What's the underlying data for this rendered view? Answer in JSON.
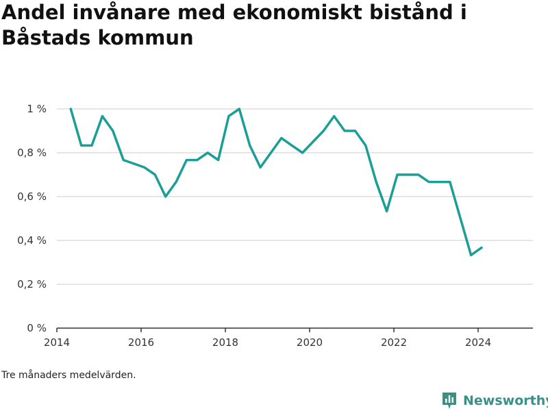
{
  "title": "Andel invånare med ekonomiskt bistånd i Båstads kommun",
  "footnote": "Tre månaders medelvärden.",
  "brand": {
    "name": "Newsworthy",
    "logo_icon": "bar-chart-chat-icon",
    "color": "#3b8f86"
  },
  "colors": {
    "line": "#1a9e96",
    "grid": "#dddddd",
    "axis": "#333333"
  },
  "chart_data": {
    "type": "line",
    "title": "Andel invånare med ekonomiskt bistånd i Båstads kommun",
    "xlabel": "",
    "ylabel": "",
    "xlim": [
      2014.0,
      2025.3
    ],
    "ylim": [
      0,
      1.0
    ],
    "grid": true,
    "x_ticks": [
      2014,
      2016,
      2018,
      2020,
      2022,
      2024
    ],
    "x_tick_labels": [
      "2014",
      "2016",
      "2018",
      "2020",
      "2022",
      "2024"
    ],
    "y_ticks": [
      0,
      0.2,
      0.4,
      0.6,
      0.8,
      1.0
    ],
    "y_tick_labels": [
      "0 %",
      "0,2 %",
      "0,4 %",
      "0,6 %",
      "0,8 %",
      "1 %"
    ],
    "series": [
      {
        "x": [
          2014.33,
          2014.58,
          2014.83,
          2015.08,
          2015.33,
          2015.58,
          2015.83,
          2016.08,
          2016.33,
          2016.58,
          2016.83,
          2017.08,
          2017.33,
          2017.58,
          2017.83,
          2018.08,
          2018.33,
          2018.58,
          2018.83,
          2019.08,
          2019.33,
          2019.58,
          2019.83,
          2020.08,
          2020.33,
          2020.58,
          2020.83,
          2021.08,
          2021.33,
          2021.58,
          2021.83,
          2022.08,
          2022.33,
          2022.58,
          2022.83,
          2023.08,
          2023.33,
          2023.58,
          2023.83,
          2024.08
        ],
        "values": [
          1.0,
          0.833,
          0.833,
          0.967,
          0.9,
          0.767,
          0.75,
          0.733,
          0.7,
          0.6,
          0.667,
          0.767,
          0.767,
          0.8,
          0.767,
          0.967,
          1.0,
          0.833,
          0.733,
          0.8,
          0.867,
          0.833,
          0.8,
          0.85,
          0.9,
          0.967,
          0.9,
          0.9,
          0.833,
          0.667,
          0.533,
          0.7,
          0.7,
          0.7,
          0.667,
          0.667,
          0.667,
          0.5,
          0.333,
          0.367
        ]
      }
    ]
  }
}
